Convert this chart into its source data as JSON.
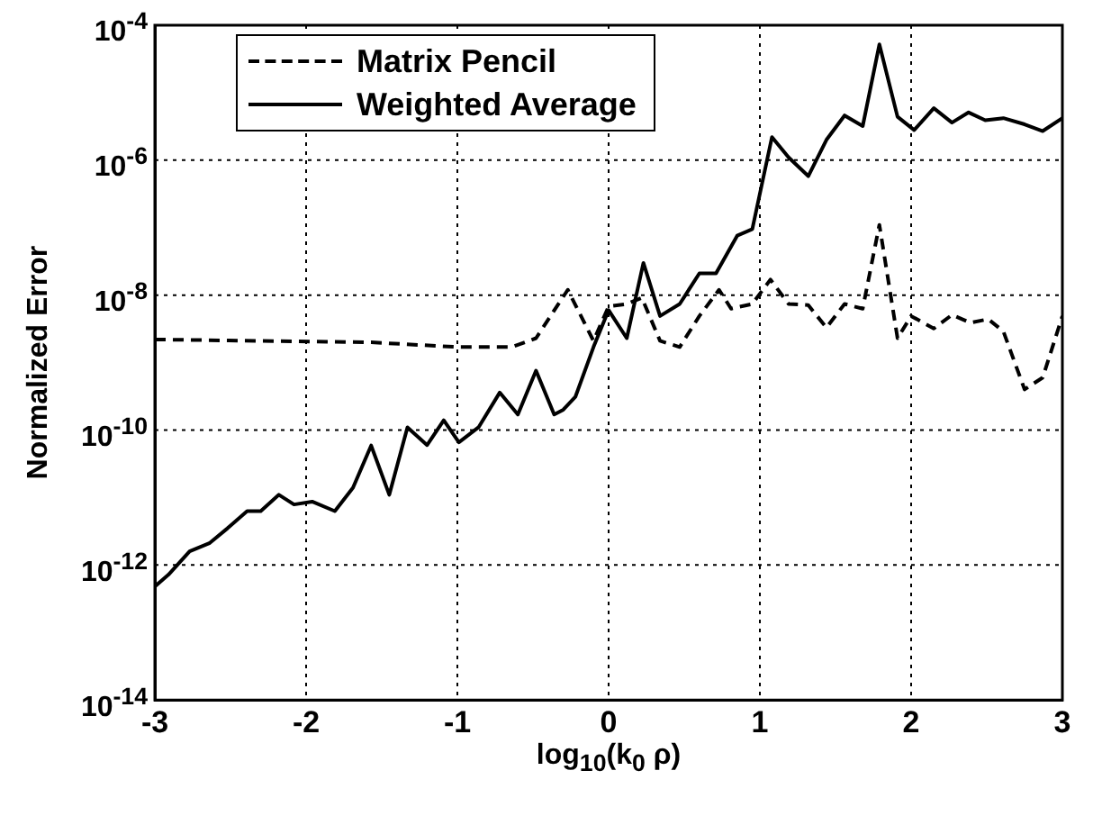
{
  "chart_data": {
    "type": "line",
    "xlabel": "log$_{10}$(k$_{0}$ ρ)",
    "ylabel": "Normalized Error",
    "log": "y",
    "grid": true,
    "legend": "top left",
    "marker": "none",
    "xlim": [
      -3,
      3
    ],
    "xticks": [
      -3,
      -2,
      -1,
      0,
      1,
      2,
      3
    ],
    "ylim": [
      1e-14,
      0.0001
    ],
    "yticks": [
      {
        "value": 1e-14,
        "label": "10$^{-14}$"
      },
      {
        "value": 1e-12,
        "label": "10$^{-12}$"
      },
      {
        "value": 1e-10,
        "label": "10$^{-10}$"
      },
      {
        "value": 1e-08,
        "label": "10$^{-8}$"
      },
      {
        "value": 1e-06,
        "label": "10$^{-6}$"
      },
      {
        "value": 0.0001,
        "label": "10$^{-4}$"
      }
    ],
    "series": [
      {
        "name": "Matrix Pencil",
        "color": "#000000",
        "line_style": "dashed",
        "x": [
          -3,
          -1.57,
          -1,
          -0.64,
          -0.48,
          -0.27,
          -0.1,
          0,
          0.12,
          0.22,
          0.34,
          0.47,
          0.6,
          0.73,
          0.81,
          0.95,
          1.07,
          1.19,
          1.32,
          1.44,
          1.56,
          1.68,
          1.79,
          1.91,
          2,
          2.15,
          2.27,
          2.39,
          2.51,
          2.61,
          2.75,
          2.87,
          3
        ],
        "values": [
          2.2e-09,
          2e-09,
          1.7e-09,
          1.7e-09,
          2.3e-09,
          1.2e-08,
          2.1e-09,
          6.8e-09,
          7.4e-09,
          9.1e-09,
          2.1e-09,
          1.7e-09,
          4.9e-09,
          1.2e-08,
          6.3e-09,
          7.4e-09,
          1.7e-08,
          7.4e-09,
          7.1e-09,
          3.3e-09,
          7.4e-09,
          6.3e-09,
          1.1e-07,
          2.3e-09,
          4.9e-09,
          3.2e-09,
          5.1e-09,
          3.9e-09,
          4.4e-09,
          2.9e-09,
          4e-10,
          6e-10,
          4.9e-09
        ]
      },
      {
        "name": "Weighted Average",
        "color": "#000000",
        "line_style": "solid",
        "x": [
          -3,
          -2.91,
          -2.77,
          -2.64,
          -2.52,
          -2.39,
          -2.3,
          -2.18,
          -2.08,
          -1.96,
          -1.81,
          -1.69,
          -1.57,
          -1.45,
          -1.33,
          -1.2,
          -1.09,
          -0.99,
          -0.86,
          -0.72,
          -0.6,
          -0.48,
          -0.36,
          -0.3,
          -0.22,
          -0.1,
          0,
          0.12,
          0.23,
          0.34,
          0.47,
          0.6,
          0.71,
          0.85,
          0.95,
          1.08,
          1.19,
          1.32,
          1.44,
          1.56,
          1.68,
          1.79,
          1.91,
          2.02,
          2.15,
          2.27,
          2.38,
          2.49,
          2.61,
          2.75,
          2.87,
          3
        ],
        "values": [
          4.8e-13,
          7.2e-13,
          1.6e-12,
          2.1e-12,
          3.5e-12,
          6.3e-12,
          6.3e-12,
          1.1e-11,
          7.9e-12,
          8.7e-12,
          6.3e-12,
          1.4e-11,
          5.9e-11,
          1.1e-11,
          1.1e-10,
          6e-11,
          1.4e-10,
          6.6e-11,
          1.1e-10,
          3.6e-10,
          1.7e-10,
          7.6e-10,
          1.7e-10,
          2e-10,
          3.1e-10,
          1.7e-09,
          6e-09,
          2.3e-09,
          3e-08,
          4.9e-09,
          7.4e-09,
          2.1e-08,
          2.1e-08,
          7.6e-08,
          9.5e-08,
          2.2e-06,
          1.1e-06,
          5.8e-07,
          2e-06,
          4.6e-06,
          3.2e-06,
          5.2e-05,
          4.4e-06,
          2.8e-06,
          5.9e-06,
          3.6e-06,
          5.1e-06,
          3.9e-06,
          4.2e-06,
          3.4e-06,
          2.7e-06,
          4.2e-06
        ]
      }
    ]
  }
}
